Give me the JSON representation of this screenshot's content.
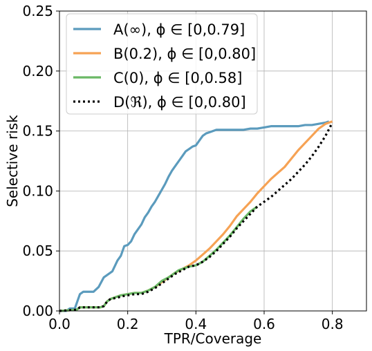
{
  "chart_data": {
    "type": "line",
    "title": "",
    "xlabel": "TPR/Coverage",
    "ylabel": "Selective risk",
    "xlim": [
      0.0,
      0.9
    ],
    "ylim": [
      0.0,
      0.25
    ],
    "xticks": [
      0.0,
      0.2,
      0.4,
      0.6,
      0.8
    ],
    "xtick_labels": [
      "0.0",
      "0.2",
      "0.4",
      "0.6",
      "0.8"
    ],
    "yticks": [
      0.0,
      0.05,
      0.1,
      0.15,
      0.2,
      0.25
    ],
    "ytick_labels": [
      "0.00",
      "0.05",
      "0.10",
      "0.15",
      "0.20",
      "0.25"
    ],
    "grid": true,
    "legend_position": "top-left",
    "series": [
      {
        "name": "A(∞), ϕ ∈ [0,0.79]",
        "color": "#5b9bbd",
        "style": "solid",
        "x": [
          0.0,
          0.02,
          0.03,
          0.045,
          0.055,
          0.06,
          0.07,
          0.08,
          0.1,
          0.115,
          0.13,
          0.14,
          0.155,
          0.17,
          0.18,
          0.19,
          0.2,
          0.21,
          0.22,
          0.23,
          0.24,
          0.25,
          0.26,
          0.27,
          0.28,
          0.29,
          0.3,
          0.31,
          0.32,
          0.33,
          0.34,
          0.35,
          0.36,
          0.37,
          0.38,
          0.39,
          0.4,
          0.41,
          0.42,
          0.43,
          0.44,
          0.45,
          0.46,
          0.5,
          0.54,
          0.56,
          0.58,
          0.6,
          0.62,
          0.64,
          0.66,
          0.7,
          0.72,
          0.74,
          0.76,
          0.78,
          0.79
        ],
        "y": [
          0.0,
          0.0,
          0.002,
          0.002,
          0.01,
          0.014,
          0.016,
          0.016,
          0.016,
          0.02,
          0.028,
          0.03,
          0.033,
          0.042,
          0.046,
          0.054,
          0.055,
          0.058,
          0.064,
          0.068,
          0.072,
          0.078,
          0.082,
          0.087,
          0.091,
          0.096,
          0.101,
          0.106,
          0.112,
          0.117,
          0.121,
          0.125,
          0.129,
          0.133,
          0.135,
          0.137,
          0.138,
          0.142,
          0.146,
          0.148,
          0.149,
          0.15,
          0.151,
          0.151,
          0.151,
          0.152,
          0.152,
          0.153,
          0.154,
          0.154,
          0.154,
          0.154,
          0.155,
          0.155,
          0.156,
          0.157,
          0.158
        ]
      },
      {
        "name": "B(0.2), ϕ ∈ [0,0.80]",
        "color": "#f6a254",
        "style": "solid",
        "x": [
          0.0,
          0.05,
          0.06,
          0.1,
          0.12,
          0.13,
          0.14,
          0.15,
          0.17,
          0.18,
          0.2,
          0.22,
          0.24,
          0.26,
          0.28,
          0.3,
          0.32,
          0.34,
          0.36,
          0.38,
          0.4,
          0.42,
          0.44,
          0.46,
          0.48,
          0.5,
          0.52,
          0.54,
          0.56,
          0.58,
          0.6,
          0.62,
          0.64,
          0.66,
          0.68,
          0.7,
          0.72,
          0.74,
          0.76,
          0.78,
          0.8
        ],
        "y": [
          0.0,
          0.001,
          0.003,
          0.003,
          0.003,
          0.004,
          0.008,
          0.01,
          0.012,
          0.013,
          0.014,
          0.015,
          0.015,
          0.017,
          0.02,
          0.024,
          0.028,
          0.032,
          0.035,
          0.038,
          0.042,
          0.047,
          0.052,
          0.058,
          0.064,
          0.071,
          0.079,
          0.085,
          0.091,
          0.098,
          0.104,
          0.11,
          0.115,
          0.12,
          0.127,
          0.134,
          0.14,
          0.146,
          0.152,
          0.156,
          0.158
        ]
      },
      {
        "name": "C(0), ϕ ∈ [0,0.58]",
        "color": "#6ab865",
        "style": "solid",
        "x": [
          0.0,
          0.05,
          0.06,
          0.1,
          0.12,
          0.13,
          0.14,
          0.15,
          0.17,
          0.18,
          0.2,
          0.22,
          0.24,
          0.26,
          0.28,
          0.3,
          0.32,
          0.34,
          0.35,
          0.36,
          0.38,
          0.4,
          0.42,
          0.44,
          0.46,
          0.48,
          0.5,
          0.52,
          0.54,
          0.56,
          0.58
        ],
        "y": [
          0.0,
          0.001,
          0.003,
          0.003,
          0.003,
          0.004,
          0.008,
          0.01,
          0.012,
          0.013,
          0.014,
          0.015,
          0.015,
          0.017,
          0.02,
          0.025,
          0.028,
          0.032,
          0.034,
          0.035,
          0.037,
          0.038,
          0.041,
          0.046,
          0.051,
          0.057,
          0.063,
          0.07,
          0.077,
          0.083,
          0.087
        ]
      },
      {
        "name": "D(ℜ), ϕ ∈ [0,0.80]",
        "color": "#000000",
        "style": "dotted",
        "x": [
          0.0,
          0.05,
          0.06,
          0.1,
          0.12,
          0.13,
          0.14,
          0.15,
          0.17,
          0.18,
          0.2,
          0.22,
          0.24,
          0.26,
          0.28,
          0.3,
          0.32,
          0.34,
          0.36,
          0.38,
          0.4,
          0.42,
          0.44,
          0.46,
          0.48,
          0.5,
          0.52,
          0.54,
          0.56,
          0.58,
          0.6,
          0.62,
          0.64,
          0.66,
          0.68,
          0.7,
          0.72,
          0.74,
          0.76,
          0.78,
          0.8
        ],
        "y": [
          0.0,
          0.001,
          0.003,
          0.003,
          0.003,
          0.004,
          0.008,
          0.01,
          0.011,
          0.012,
          0.013,
          0.014,
          0.014,
          0.016,
          0.019,
          0.023,
          0.027,
          0.031,
          0.034,
          0.037,
          0.038,
          0.041,
          0.045,
          0.05,
          0.056,
          0.062,
          0.069,
          0.075,
          0.081,
          0.087,
          0.091,
          0.095,
          0.1,
          0.105,
          0.11,
          0.116,
          0.122,
          0.129,
          0.137,
          0.146,
          0.157
        ]
      }
    ]
  }
}
